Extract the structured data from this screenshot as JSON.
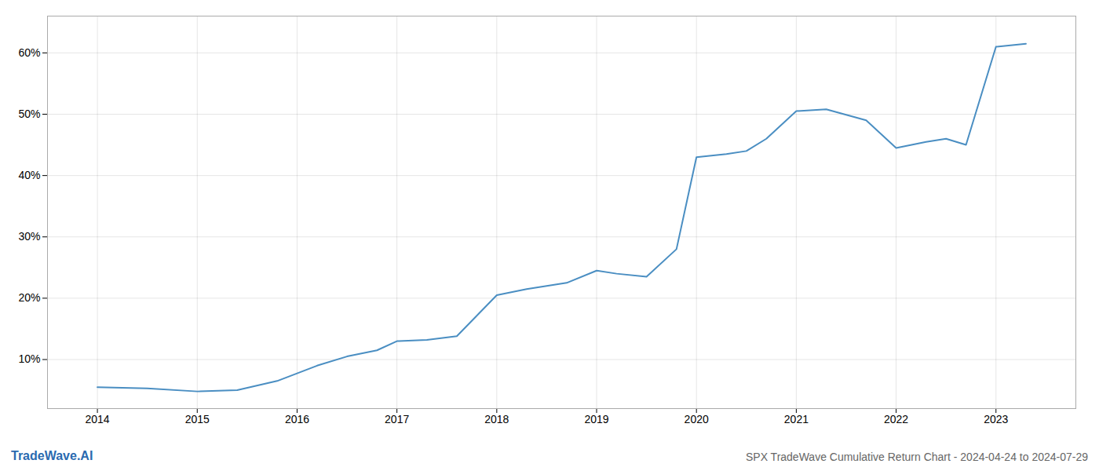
{
  "chart_data": {
    "type": "line",
    "title": "SPX TradeWave Cumulative Return Chart - 2024-04-24 to 2024-07-29",
    "annotations": [
      {
        "text": "TradeWave.AI",
        "color": "#2a6ab0"
      }
    ],
    "color": "#4a8ec2",
    "x": [
      2014.0,
      2014.5,
      2015.0,
      2015.4,
      2015.8,
      2016.2,
      2016.5,
      2016.8,
      2017.0,
      2017.3,
      2017.6,
      2018.0,
      2018.3,
      2018.7,
      2019.0,
      2019.2,
      2019.5,
      2019.8,
      2020.0,
      2020.3,
      2020.5,
      2020.7,
      2021.0,
      2021.3,
      2021.7,
      2022.0,
      2022.3,
      2022.5,
      2022.7,
      2023.0,
      2023.3
    ],
    "values": [
      5.5,
      5.3,
      4.8,
      5.0,
      6.5,
      9.0,
      10.5,
      11.5,
      13.0,
      13.2,
      13.8,
      20.5,
      21.5,
      22.5,
      24.5,
      24.0,
      23.5,
      28.0,
      43.0,
      43.5,
      44.0,
      46.0,
      50.5,
      50.8,
      49.0,
      44.5,
      45.5,
      46.0,
      45.0,
      61.0,
      61.5
    ],
    "xlim": [
      2013.5,
      2023.8
    ],
    "xticks": [
      2014,
      2015,
      2016,
      2017,
      2018,
      2019,
      2020,
      2021,
      2022,
      2023
    ],
    "ylim": [
      2,
      66
    ],
    "yticks": [
      {
        "value": 10,
        "label": "10%"
      },
      {
        "value": 20,
        "label": "20%"
      },
      {
        "value": 30,
        "label": "30%"
      },
      {
        "value": 40,
        "label": "40%"
      },
      {
        "value": 50,
        "label": "50%"
      },
      {
        "value": 60,
        "label": "60%"
      }
    ],
    "grid": true
  }
}
